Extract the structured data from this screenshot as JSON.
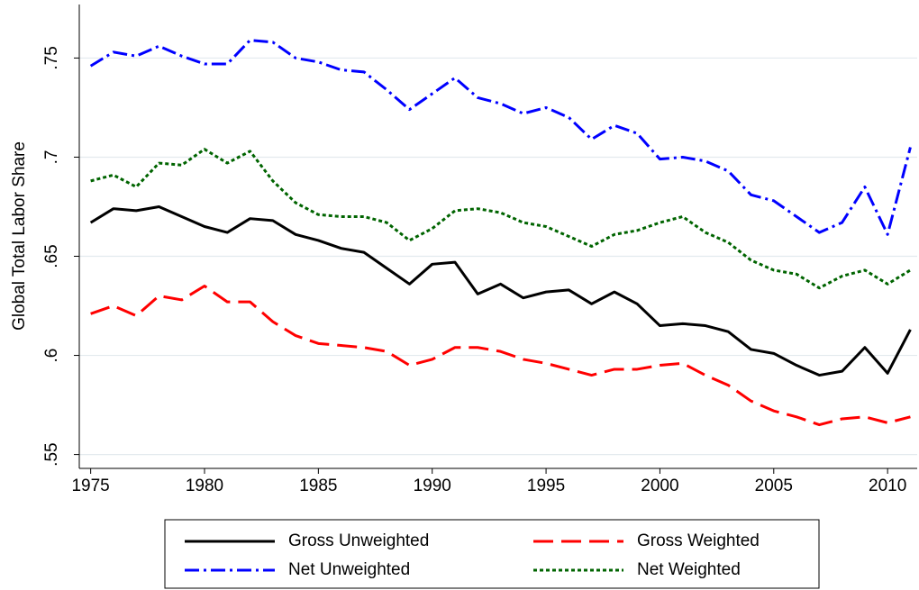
{
  "chart_data": {
    "type": "line",
    "ylabel": "Global Total Labor Share",
    "x": [
      1975,
      1976,
      1977,
      1978,
      1979,
      1980,
      1981,
      1982,
      1983,
      1984,
      1985,
      1986,
      1987,
      1988,
      1989,
      1990,
      1991,
      1992,
      1993,
      1994,
      1995,
      1996,
      1997,
      1998,
      1999,
      2000,
      2001,
      2002,
      2003,
      2004,
      2005,
      2006,
      2007,
      2008,
      2009,
      2010,
      2011
    ],
    "xlim": [
      1974.5,
      2011.3
    ],
    "xticks": [
      1975,
      1980,
      1985,
      1990,
      1995,
      2000,
      2005,
      2010
    ],
    "ylim": [
      0.543,
      0.777
    ],
    "yticks": [
      {
        "value": 0.55,
        "label": ".55"
      },
      {
        "value": 0.6,
        "label": ".6"
      },
      {
        "value": 0.65,
        "label": ".65"
      },
      {
        "value": 0.7,
        "label": ".7"
      },
      {
        "value": 0.75,
        "label": ".75"
      }
    ],
    "grid": true,
    "legend": "bottom",
    "series": [
      {
        "name": "Gross Unweighted",
        "color": "#000000",
        "dash": "solid",
        "values": [
          0.667,
          0.674,
          0.673,
          0.675,
          0.67,
          0.665,
          0.662,
          0.669,
          0.668,
          0.661,
          0.658,
          0.654,
          0.652,
          0.644,
          0.636,
          0.646,
          0.647,
          0.631,
          0.636,
          0.629,
          0.632,
          0.633,
          0.626,
          0.632,
          0.626,
          0.615,
          0.616,
          0.615,
          0.612,
          0.603,
          0.601,
          0.595,
          0.59,
          0.592,
          0.604,
          0.591,
          0.613
        ]
      },
      {
        "name": "Gross Weighted",
        "color": "#ff0000",
        "dash": "dashed",
        "values": [
          0.621,
          0.625,
          0.62,
          0.63,
          0.628,
          0.635,
          0.627,
          0.627,
          0.617,
          0.61,
          0.606,
          0.605,
          0.604,
          0.602,
          0.595,
          0.598,
          0.604,
          0.604,
          0.602,
          0.598,
          0.596,
          0.593,
          0.59,
          0.593,
          0.593,
          0.595,
          0.596,
          0.59,
          0.585,
          0.577,
          0.572,
          0.569,
          0.565,
          0.568,
          0.569,
          0.566,
          0.569
        ]
      },
      {
        "name": "Net Unweighted",
        "color": "#0000ff",
        "dash": "dashdot",
        "values": [
          0.746,
          0.753,
          0.751,
          0.756,
          0.751,
          0.747,
          0.747,
          0.759,
          0.758,
          0.75,
          0.748,
          0.744,
          0.743,
          0.734,
          0.724,
          0.732,
          0.74,
          0.73,
          0.727,
          0.722,
          0.725,
          0.72,
          0.709,
          0.716,
          0.712,
          0.699,
          0.7,
          0.698,
          0.693,
          0.681,
          0.678,
          0.67,
          0.662,
          0.667,
          0.685,
          0.661,
          0.705
        ]
      },
      {
        "name": "Net Weighted",
        "color": "#006400",
        "dash": "dotted",
        "values": [
          0.688,
          0.691,
          0.685,
          0.697,
          0.696,
          0.704,
          0.697,
          0.703,
          0.688,
          0.677,
          0.671,
          0.67,
          0.67,
          0.667,
          0.658,
          0.664,
          0.673,
          0.674,
          0.672,
          0.667,
          0.665,
          0.66,
          0.655,
          0.661,
          0.663,
          0.667,
          0.67,
          0.662,
          0.657,
          0.648,
          0.643,
          0.641,
          0.634,
          0.64,
          0.643,
          0.636,
          0.643
        ]
      }
    ]
  }
}
